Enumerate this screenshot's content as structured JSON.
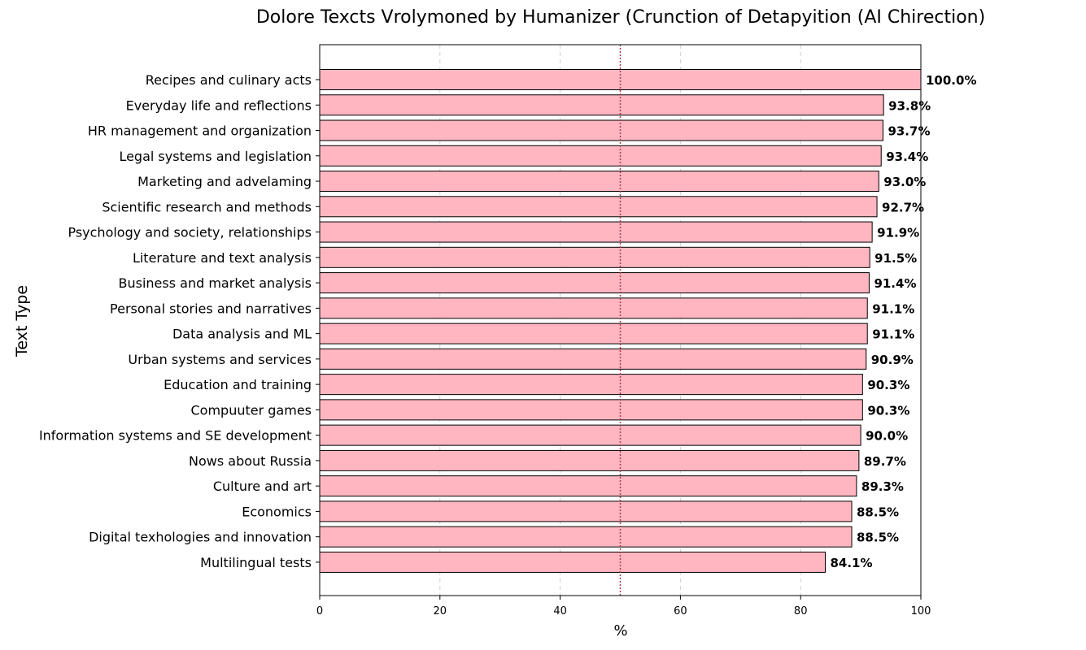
{
  "chart_data": {
    "type": "bar",
    "orientation": "horizontal",
    "title": "Dolore Texcts Vrolymoned by Humanizer (Crunction of Detapyition (AI Chirection)",
    "xlabel": "%",
    "ylabel": "Text Type",
    "xlim": [
      0,
      100
    ],
    "xticks": [
      0,
      20,
      40,
      60,
      80,
      100
    ],
    "grid": "x dashed",
    "reference_line": {
      "x": 50,
      "color": "#b03a48",
      "style": "dotted"
    },
    "bar_color": "#ffb6c1",
    "bar_edge_color": "#000000",
    "categories": [
      "Recipes and culinary acts",
      "Everyday life and reflections",
      "HR management and organization",
      "Legal systems and legislation",
      "Marketing and advelaming",
      "Scientific research and methods",
      "Psychology and society, relationships",
      "Literature and text analysis",
      "Business and market analysis",
      "Personal stories and narratives",
      "Data analysis and ML",
      "Urban systems and services",
      "Education and training",
      "Compuuter games",
      "Information systems and SE development",
      "Nows about Russia",
      "Culture and art",
      "Economics",
      "Digital texhologies and innovation",
      "Multilingual tests"
    ],
    "values": [
      100.0,
      93.8,
      93.7,
      93.4,
      93.0,
      92.7,
      91.9,
      91.5,
      91.4,
      91.1,
      91.1,
      90.9,
      90.3,
      90.3,
      90.0,
      89.7,
      89.3,
      88.5,
      88.5,
      84.1
    ],
    "labels": [
      "100.0%",
      "93.8%",
      "93.7%",
      "93.4%",
      "93.0%",
      "92.7%",
      "91.9%",
      "91.5%",
      "91.4%",
      "91.1%",
      "91.1%",
      "90.9%",
      "90.3%",
      "90.3%",
      "90.0%",
      "89.7%",
      "89.3%",
      "88.5%",
      "88.5%",
      "84.1%"
    ]
  }
}
